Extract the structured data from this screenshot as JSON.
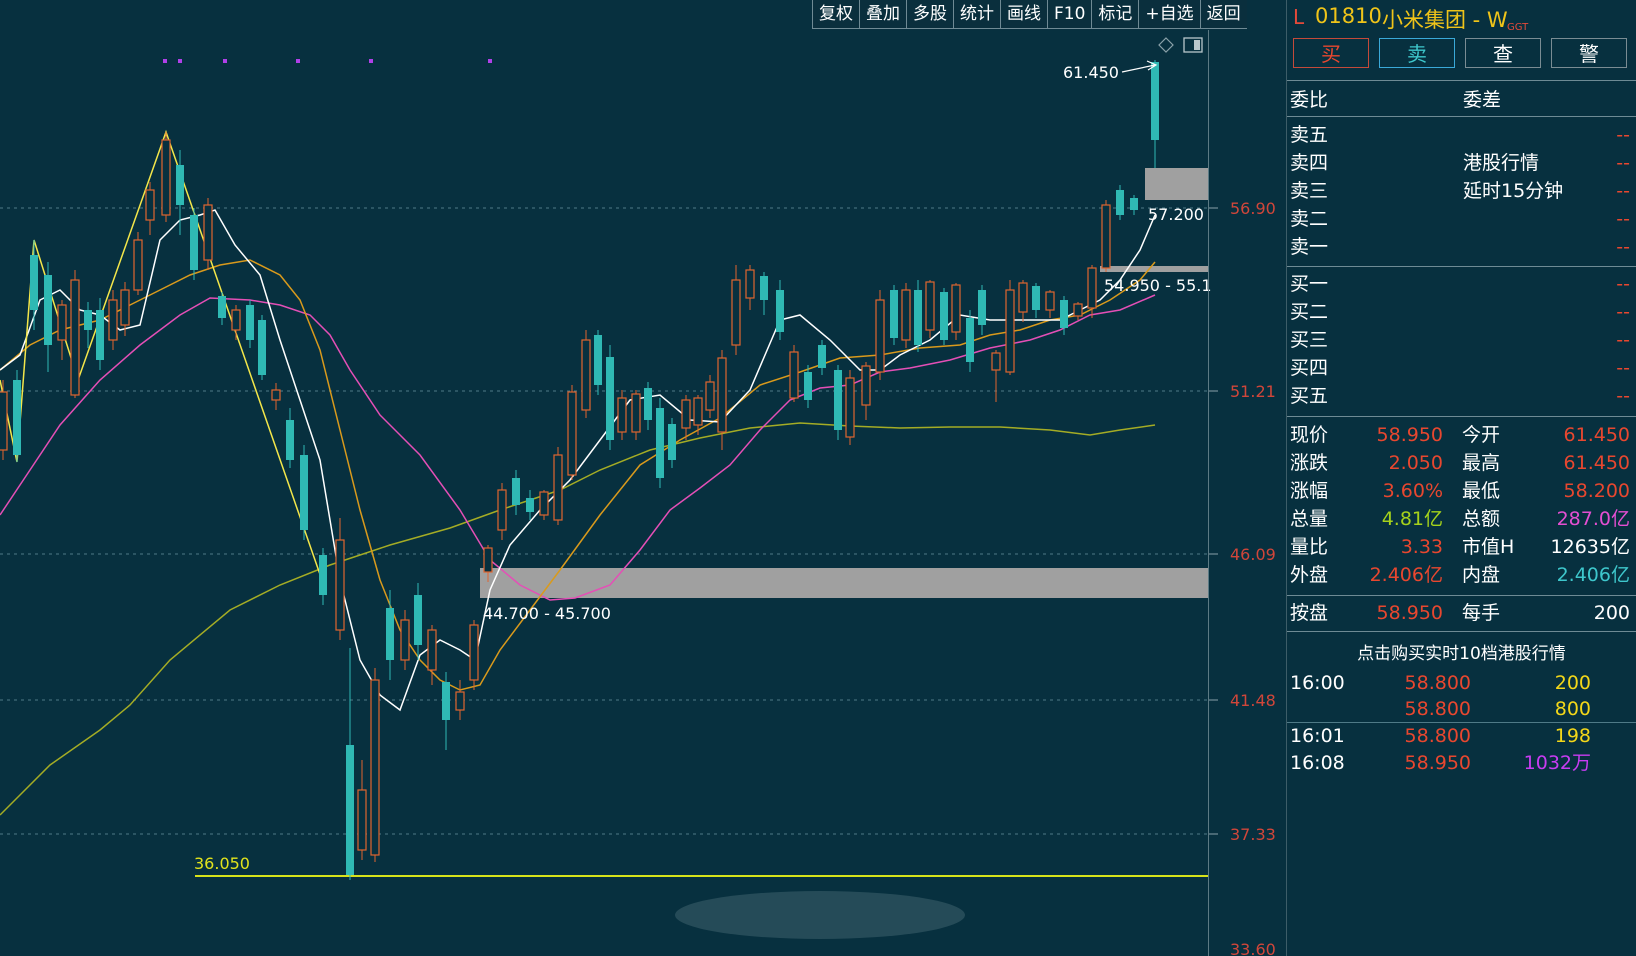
{
  "toolbar": {
    "buttons": [
      "复权",
      "叠加",
      "多股",
      "统计",
      "画线",
      "F10",
      "标记",
      "+自选",
      "返回"
    ]
  },
  "chart": {
    "price_labels": [
      "56.90",
      "51.21",
      "46.09",
      "41.48",
      "37.33",
      "33.60"
    ],
    "annotations": {
      "high": "61.450",
      "level_57": "57.200",
      "zone_upper": "54.950 - 55.1",
      "zone_lower": "44.700 - 45.700",
      "low": "36.050"
    },
    "icons": [
      "diamond-icon",
      "panel-toggle-icon"
    ],
    "colors": {
      "up_candle": "#e0652f",
      "down_candle": "#2fb9b4",
      "ma_white": "#ffffff",
      "ma_orange": "#d99a1c",
      "ma_magenta": "#e44fb6",
      "ma_olive": "#a4ac25",
      "zigzag": "#f3e64a",
      "zone": "#a0a0a0"
    }
  },
  "panel": {
    "title": {
      "prefix": "L",
      "code": "01810",
      "name": "小米集团 - W",
      "badge": "GGT"
    },
    "actions": {
      "buy": "买",
      "sell": "卖",
      "query": "查",
      "alert": "警"
    },
    "order_header": {
      "ratio": "委比",
      "diff": "委差"
    },
    "asks": [
      {
        "label": "卖五",
        "value": "--"
      },
      {
        "label": "卖四",
        "value": "--"
      },
      {
        "label": "卖三",
        "value": "--"
      },
      {
        "label": "卖二",
        "value": "--"
      },
      {
        "label": "卖一",
        "value": "--"
      }
    ],
    "notice": {
      "line1": "港股行情",
      "line2": "延时15分钟"
    },
    "bids": [
      {
        "label": "买一",
        "value": "--"
      },
      {
        "label": "买二",
        "value": "--"
      },
      {
        "label": "买三",
        "value": "--"
      },
      {
        "label": "买四",
        "value": "--"
      },
      {
        "label": "买五",
        "value": "--"
      }
    ],
    "quote": [
      {
        "l1": "现价",
        "v1": "58.950",
        "l2": "今开",
        "v2": "61.450"
      },
      {
        "l1": "涨跌",
        "v1": "2.050",
        "l2": "最高",
        "v2": "61.450"
      },
      {
        "l1": "涨幅",
        "v1": "3.60%",
        "l2": "最低",
        "v2": "58.200"
      },
      {
        "l1": "总量",
        "v1": "4.81亿",
        "l2": "总额",
        "v2": "287.0亿"
      },
      {
        "l1": "量比",
        "v1": "3.33",
        "l2": "市值H",
        "v2": "12635亿"
      },
      {
        "l1": "外盘",
        "v1": "2.406亿",
        "l2": "内盘",
        "v2": "2.406亿"
      }
    ],
    "after_hours": {
      "label": "按盘",
      "price": "58.950",
      "lot_label": "每手",
      "lot": "200"
    },
    "promo": "点击购买实时10档港股行情",
    "ticks": [
      {
        "time": "16:00",
        "price": "58.800",
        "vol": "200"
      },
      {
        "time": "",
        "price": "58.800",
        "vol": "800"
      },
      {
        "time": "16:01",
        "price": "58.800",
        "vol": "198"
      },
      {
        "time": "16:08",
        "price": "58.950",
        "vol": "1032万"
      }
    ]
  }
}
